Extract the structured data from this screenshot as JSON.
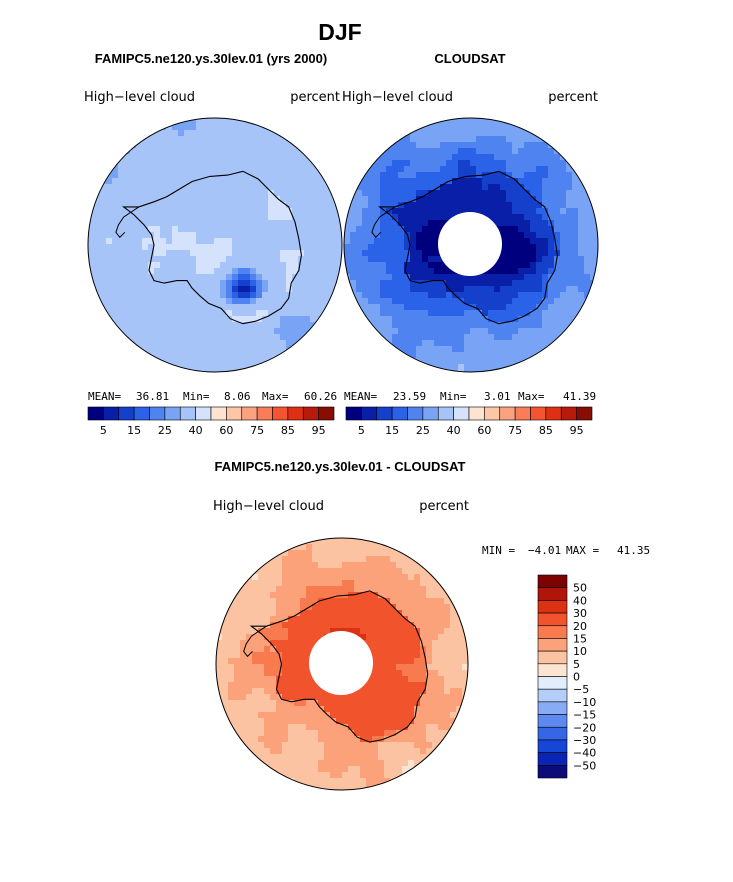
{
  "figure": {
    "title": "DJF",
    "panel_a_heading": "FAMIPC5.ne120.ys.30lev.01 (yrs 2000)",
    "panel_b_heading": "CLOUDSAT",
    "panel_c_heading": "FAMIPC5.ne120.ys.30lev.01 - CLOUDSAT"
  },
  "colors": {
    "cont_scale": [
      "#00007f",
      "#0a1fa8",
      "#1440cc",
      "#2a62e8",
      "#4f84f0",
      "#79a4f5",
      "#a7c4f8",
      "#d4e3fb",
      "#fde4d1",
      "#fcc6a7",
      "#fba27e",
      "#f97e57",
      "#f45530",
      "#e03014",
      "#b81b0a",
      "#8a0d04"
    ],
    "diff_scale": [
      "#0b0b7a",
      "#0a24b5",
      "#1646d6",
      "#3566e6",
      "#5e89ef",
      "#88abf5",
      "#b5cdf9",
      "#e2edfc",
      "#fde4d1",
      "#fcc3a2",
      "#fba27a",
      "#f87b50",
      "#f1542d",
      "#db3214",
      "#b0150a",
      "#7d0303"
    ],
    "coast": "#000000",
    "hole": "#ffffff"
  },
  "chart_data": [
    {
      "type": "heatmap",
      "panel": "model",
      "left_label": "High−level cloud",
      "right_label": "percent",
      "projection": "south-polar-stereographic",
      "stats": {
        "mean_label": "MEAN=",
        "mean": "36.81",
        "min_label": "Min=",
        "min": "8.06",
        "max_label": "Max=",
        "max": "60.26"
      },
      "colorbar": {
        "levels": [
          5,
          10,
          15,
          20,
          25,
          30,
          40,
          50,
          60,
          70,
          75,
          80,
          85,
          90,
          95
        ],
        "tick_labels": [
          "5",
          "15",
          "25",
          "40",
          "60",
          "75",
          "85",
          "95"
        ],
        "orientation": "horizontal"
      },
      "field": {
        "base": 36,
        "polar_hole": false
      }
    },
    {
      "type": "heatmap",
      "panel": "observations",
      "left_label": "High−level cloud",
      "right_label": "percent",
      "projection": "south-polar-stereographic",
      "stats": {
        "mean_label": "MEAN=",
        "mean": "23.59",
        "min_label": "Min=",
        "min": "3.01",
        "max_label": "Max=",
        "max": "41.39"
      },
      "colorbar": {
        "levels": [
          5,
          10,
          15,
          20,
          25,
          30,
          40,
          50,
          60,
          70,
          75,
          80,
          85,
          90,
          95
        ],
        "tick_labels": [
          "5",
          "15",
          "25",
          "40",
          "60",
          "75",
          "85",
          "95"
        ],
        "orientation": "horizontal"
      },
      "field": {
        "base": 24,
        "polar_hole": true
      }
    },
    {
      "type": "heatmap",
      "panel": "difference",
      "left_label": "High−level cloud",
      "right_label": "percent",
      "projection": "south-polar-stereographic",
      "stats": {
        "min_label": "MIN =",
        "min": "−4.01",
        "max_label": "MAX =",
        "max": "41.35"
      },
      "colorbar": {
        "levels": [
          -50,
          -40,
          -30,
          -20,
          -15,
          -10,
          -5,
          0,
          5,
          10,
          15,
          20,
          30,
          40,
          50
        ],
        "tick_labels": [
          "50",
          "40",
          "30",
          "20",
          "15",
          "10",
          "5",
          "0",
          "−5",
          "−10",
          "−15",
          "−20",
          "−30",
          "−40",
          "−50"
        ],
        "orientation": "vertical"
      },
      "field": {
        "base": 12,
        "polar_hole": true
      }
    }
  ]
}
